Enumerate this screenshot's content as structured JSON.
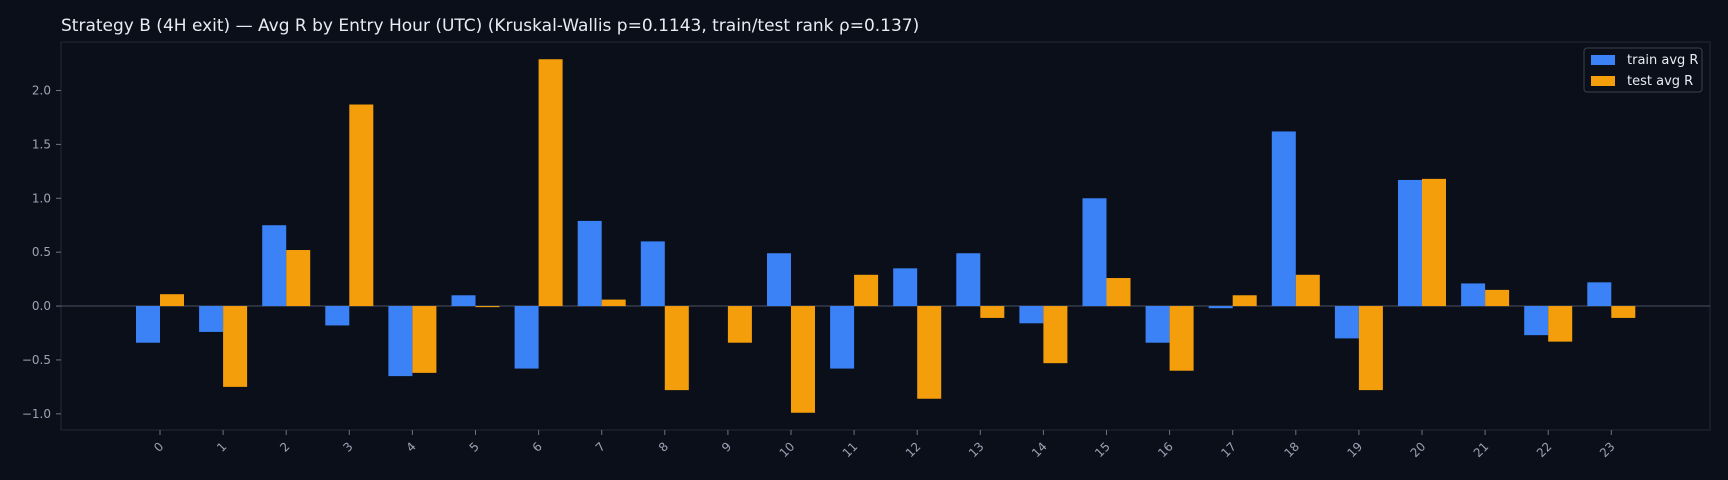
{
  "chart_data": {
    "type": "bar",
    "title": "Strategy B (4H exit) — Avg R by Entry Hour (UTC) (Kruskal-Wallis p=0.1143, train/test rank ρ=0.137)",
    "xlabel": "",
    "ylabel": "",
    "categories": [
      "0",
      "1",
      "2",
      "3",
      "4",
      "5",
      "6",
      "7",
      "8",
      "9",
      "10",
      "11",
      "12",
      "13",
      "14",
      "15",
      "16",
      "17",
      "18",
      "19",
      "20",
      "21",
      "22",
      "23"
    ],
    "series": [
      {
        "name": "train avg R",
        "color": "#3b82f6",
        "values": [
          -0.34,
          -0.24,
          0.75,
          -0.18,
          -0.65,
          0.1,
          -0.58,
          0.79,
          0.6,
          0.0,
          0.49,
          -0.58,
          0.35,
          0.49,
          -0.16,
          1.0,
          -0.34,
          -0.02,
          1.62,
          -0.3,
          1.17,
          0.21,
          -0.27,
          0.22
        ]
      },
      {
        "name": "test avg R",
        "color": "#f59e0b",
        "values": [
          0.11,
          -0.75,
          0.52,
          1.87,
          -0.62,
          -0.01,
          2.29,
          0.06,
          -0.78,
          -0.34,
          -0.99,
          0.29,
          -0.86,
          -0.11,
          -0.53,
          0.26,
          -0.6,
          0.1,
          0.29,
          -0.78,
          1.18,
          0.15,
          -0.33,
          -0.11
        ]
      }
    ],
    "yticks": [
      "−1.0",
      "−0.5",
      "0.0",
      "0.5",
      "1.0",
      "1.5",
      "2.0"
    ],
    "ytick_values": [
      -1.0,
      -0.5,
      0.0,
      0.5,
      1.0,
      1.5,
      2.0
    ],
    "ylim": [
      -1.15,
      2.45
    ],
    "grid": false,
    "legend_position": "top-right",
    "colors": {
      "background": "#0b0f19",
      "axes_edge": "#242a38",
      "zero_line": "#4a5263",
      "text": "#e8ebf2",
      "tick_text": "#9aa3b5",
      "legend_edge": "#3a4150"
    }
  }
}
